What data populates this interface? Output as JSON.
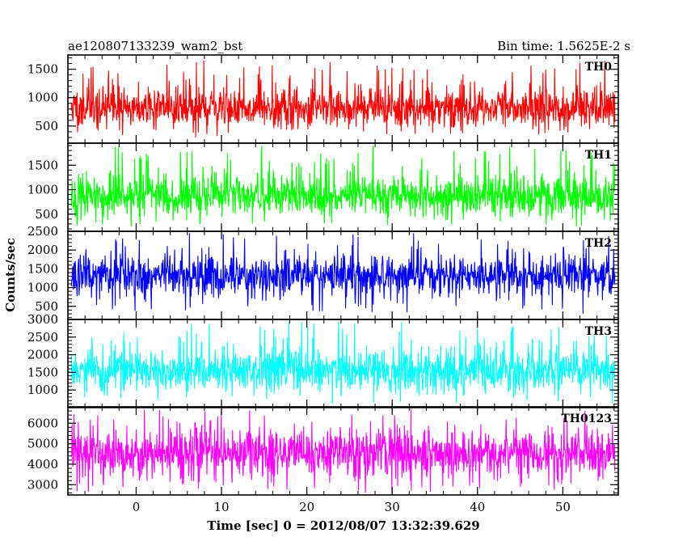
{
  "header": {
    "title": "ae120807133239_wam2_bst",
    "bin_time": "Bin time: 1.5625E-2 s"
  },
  "chart_data": {
    "type": "line",
    "title": "ae120807133239_wam2_bst",
    "xlabel": "Time [sec] 0 = 2012/08/07 13:32:39.629",
    "ylabel": "Counts/sec",
    "xlim": [
      -8.0,
      56.5
    ],
    "data_range": [
      -7.6,
      56.1
    ],
    "x_ticks": [
      {
        "value": 0,
        "label": "0"
      },
      {
        "value": 10,
        "label": "10"
      },
      {
        "value": 20,
        "label": "20"
      },
      {
        "value": 30,
        "label": "30"
      },
      {
        "value": 40,
        "label": "40"
      },
      {
        "value": 50,
        "label": "50"
      }
    ],
    "x_minor_step": 2,
    "panels": [
      {
        "name": "TH0",
        "color": "#ff0000",
        "ylim": [
          200,
          1750
        ],
        "y_ticks": [
          500,
          1000,
          1500
        ],
        "y_minor_step": 100,
        "mean": 820,
        "spread": 170,
        "max": 1700,
        "min": 300,
        "seed": 11
      },
      {
        "name": "TH1",
        "color": "#00ff00",
        "ylim": [
          150,
          1950
        ],
        "y_ticks": [
          500,
          1000,
          1500
        ],
        "y_minor_step": 100,
        "mean": 880,
        "spread": 200,
        "max": 1900,
        "min": 250,
        "seed": 23
      },
      {
        "name": "TH2",
        "color": "#0000ff",
        "ylim": [
          150,
          2500
        ],
        "y_ticks": [
          500,
          1000,
          1500,
          2000,
          2500
        ],
        "y_minor_step": 100,
        "mean": 1320,
        "spread": 260,
        "max": 2450,
        "min": 300,
        "seed": 37
      },
      {
        "name": "TH3",
        "color": "#00ffff",
        "ylim": [
          500,
          3000
        ],
        "y_ticks": [
          1000,
          1500,
          2000,
          2500,
          3000
        ],
        "y_minor_step": 100,
        "mean": 1570,
        "spread": 290,
        "max": 2950,
        "min": 620,
        "seed": 53
      },
      {
        "name": "TH0123",
        "color": "#ff00ff",
        "ylim": [
          2500,
          6800
        ],
        "y_ticks": [
          3000,
          4000,
          5000,
          6000
        ],
        "y_minor_step": 200,
        "mean": 4550,
        "spread": 560,
        "max": 6700,
        "min": 2550,
        "seed": 71
      }
    ]
  }
}
